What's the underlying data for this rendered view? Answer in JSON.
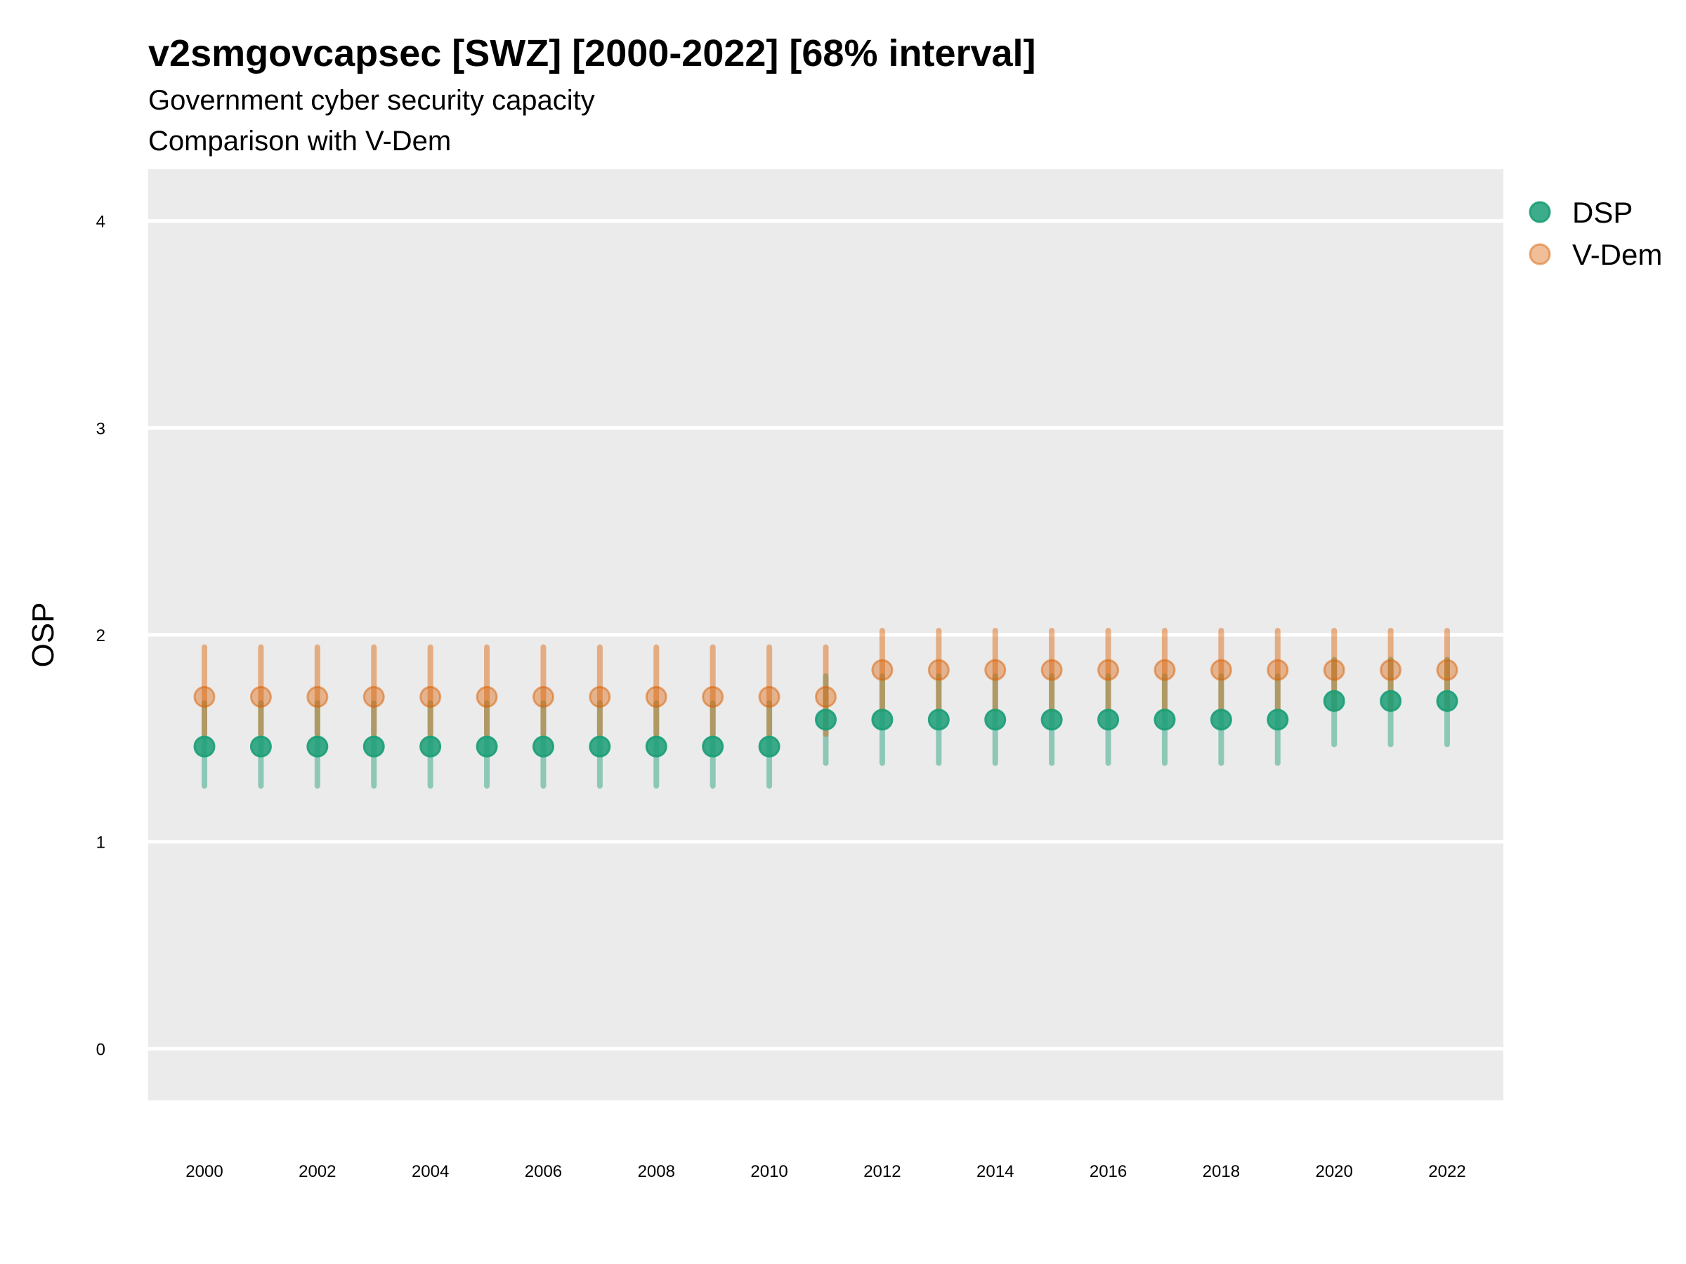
{
  "chart_data": {
    "type": "scatter",
    "title": "v2smgovcapsec [SWZ] [2000-2022] [68% interval]",
    "subtitle": "Government cyber security capacity",
    "subtitle2": "Comparison with V-Dem",
    "xlabel": "",
    "ylabel": "OSP",
    "ylim": [
      -0.25,
      4.25
    ],
    "yticks": [
      0,
      1,
      2,
      3,
      4
    ],
    "xticks": [
      2000,
      2002,
      2004,
      2006,
      2008,
      2010,
      2012,
      2014,
      2016,
      2018,
      2020,
      2022
    ],
    "grid": true,
    "legend_position": "right",
    "x": [
      2000,
      2001,
      2002,
      2003,
      2004,
      2005,
      2006,
      2007,
      2008,
      2009,
      2010,
      2011,
      2012,
      2013,
      2014,
      2015,
      2016,
      2017,
      2018,
      2019,
      2020,
      2021,
      2022
    ],
    "series": [
      {
        "name": "DSP",
        "color": "#1b9e77",
        "values": [
          1.46,
          1.46,
          1.46,
          1.46,
          1.46,
          1.46,
          1.46,
          1.46,
          1.46,
          1.46,
          1.46,
          1.59,
          1.59,
          1.59,
          1.59,
          1.59,
          1.59,
          1.59,
          1.59,
          1.59,
          1.68,
          1.68,
          1.68
        ],
        "lower": [
          1.27,
          1.27,
          1.27,
          1.27,
          1.27,
          1.27,
          1.27,
          1.27,
          1.27,
          1.27,
          1.27,
          1.38,
          1.38,
          1.38,
          1.38,
          1.38,
          1.38,
          1.38,
          1.38,
          1.38,
          1.47,
          1.47,
          1.47
        ],
        "upper": [
          1.67,
          1.67,
          1.67,
          1.67,
          1.67,
          1.67,
          1.67,
          1.67,
          1.67,
          1.67,
          1.67,
          1.8,
          1.8,
          1.8,
          1.8,
          1.8,
          1.8,
          1.8,
          1.8,
          1.8,
          1.88,
          1.88,
          1.88
        ]
      },
      {
        "name": "V-Dem",
        "color": "#d95f02",
        "values": [
          1.7,
          1.7,
          1.7,
          1.7,
          1.7,
          1.7,
          1.7,
          1.7,
          1.7,
          1.7,
          1.7,
          1.7,
          1.83,
          1.83,
          1.83,
          1.83,
          1.83,
          1.83,
          1.83,
          1.83,
          1.83,
          1.83,
          1.83
        ],
        "lower": [
          1.52,
          1.52,
          1.52,
          1.52,
          1.52,
          1.52,
          1.52,
          1.52,
          1.52,
          1.52,
          1.52,
          1.52,
          1.64,
          1.64,
          1.64,
          1.64,
          1.64,
          1.64,
          1.64,
          1.64,
          1.64,
          1.64,
          1.64
        ],
        "upper": [
          1.94,
          1.94,
          1.94,
          1.94,
          1.94,
          1.94,
          1.94,
          1.94,
          1.94,
          1.94,
          1.94,
          1.94,
          2.02,
          2.02,
          2.02,
          2.02,
          2.02,
          2.02,
          2.02,
          2.02,
          2.02,
          2.02,
          2.02
        ]
      }
    ]
  }
}
